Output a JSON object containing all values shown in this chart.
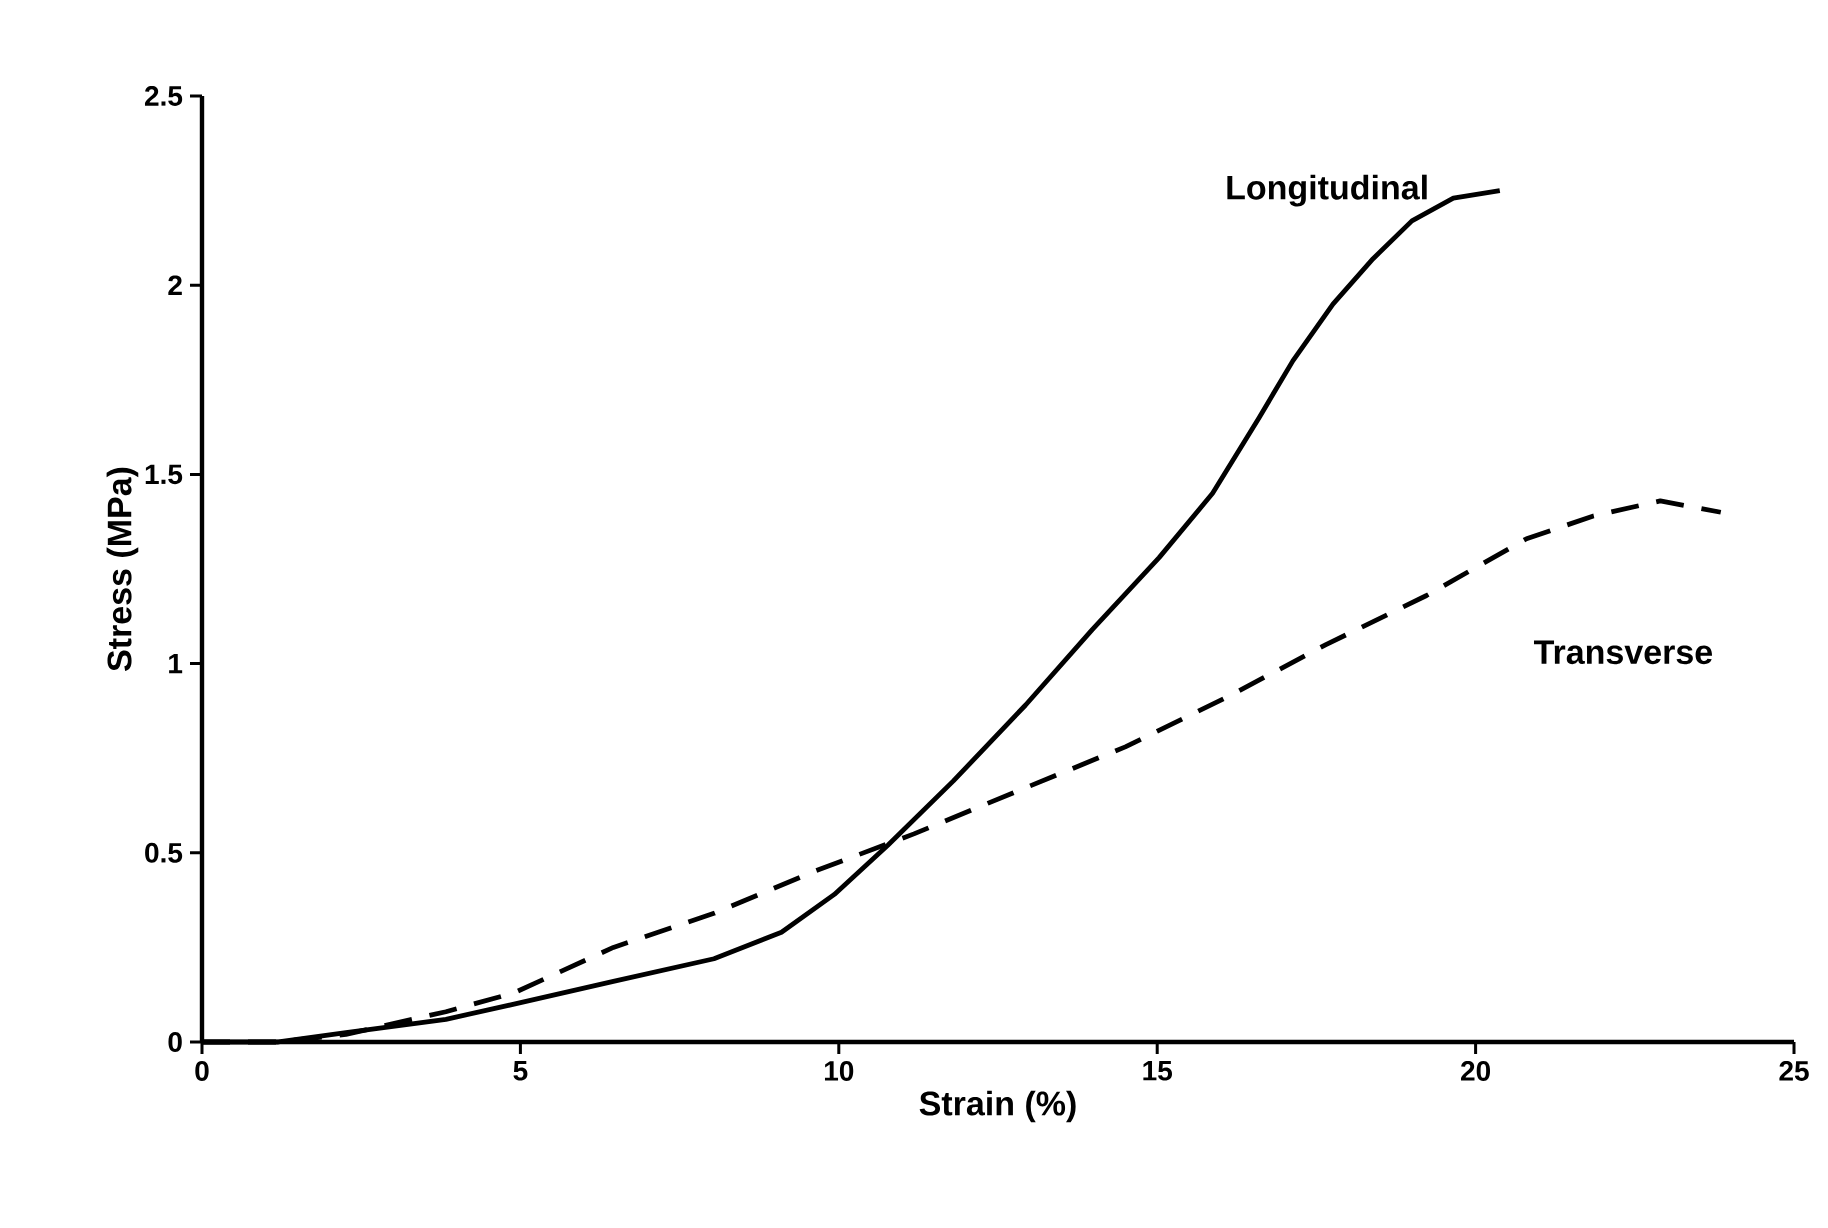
{
  "chart_data": {
    "type": "line",
    "xlabel": "Strain (%)",
    "ylabel": "Stress (MPa)",
    "xlim": [
      0,
      25
    ],
    "ylim": [
      0,
      2.5
    ],
    "xticks": [
      0,
      5,
      10,
      15,
      20,
      25
    ],
    "yticks": [
      0,
      0.5,
      1,
      1.5,
      2,
      2.5
    ],
    "grid": false,
    "legend": false,
    "marker": "none",
    "series": [
      {
        "name": "Longitudinal",
        "color": "#000000",
        "line_style": "solid",
        "x": [
          0,
          1.2,
          2.26,
          3.83,
          4.9,
          6.46,
          8.04,
          9.1,
          9.93,
          10.77,
          11.8,
          12.93,
          13.98,
          15.03,
          15.87,
          16.6,
          17.13,
          17.76,
          18.39,
          19.0,
          19.65,
          20.38
        ],
        "values": [
          0,
          0,
          0.025,
          0.06,
          0.1,
          0.16,
          0.22,
          0.29,
          0.39,
          0.52,
          0.69,
          0.89,
          1.09,
          1.28,
          1.45,
          1.65,
          1.8,
          1.95,
          2.07,
          2.17,
          2.23,
          2.25
        ]
      },
      {
        "name": "Transverse",
        "color": "#000000",
        "line_style": "dashed",
        "x": [
          0,
          1.2,
          2.26,
          3.83,
          4.9,
          6.46,
          8.04,
          9.6,
          11.18,
          12.76,
          14.5,
          16.08,
          17.65,
          19.23,
          20.8,
          21.85,
          22.9,
          23.85
        ],
        "values": [
          0,
          0,
          0.02,
          0.08,
          0.13,
          0.25,
          0.34,
          0.45,
          0.55,
          0.66,
          0.78,
          0.91,
          1.05,
          1.18,
          1.33,
          1.39,
          1.43,
          1.4
        ]
      }
    ]
  }
}
